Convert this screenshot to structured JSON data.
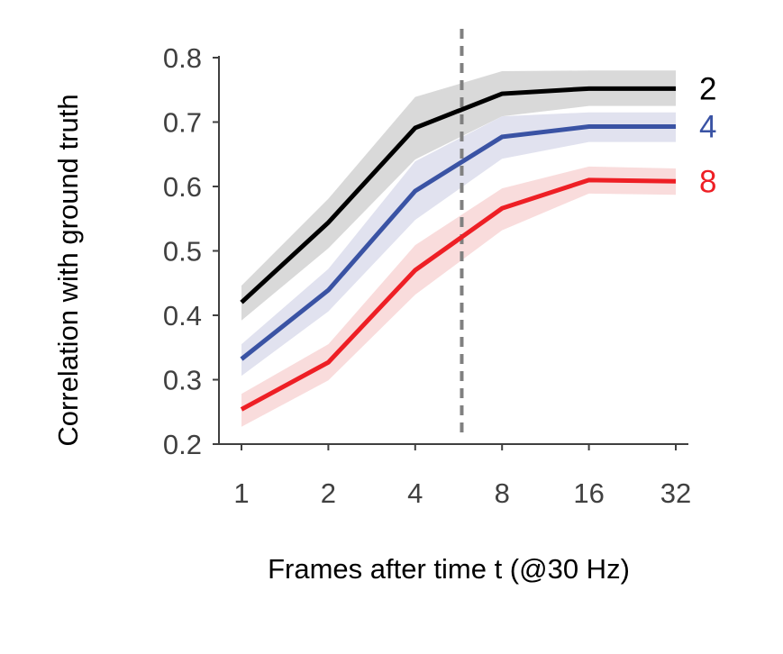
{
  "chart_data": {
    "type": "line",
    "xlabel": "Frames after time t (@30 Hz)",
    "ylabel": "Correlation with ground truth",
    "x": [
      1,
      2,
      4,
      8,
      16,
      32
    ],
    "x_tick_labels": [
      "1",
      "2",
      "4",
      "8",
      "16",
      "32"
    ],
    "x_scale": "log2",
    "ylim": [
      0.2,
      0.8
    ],
    "y_ticks": [
      0.2,
      0.3,
      0.4,
      0.5,
      0.6,
      0.7,
      0.8
    ],
    "y_tick_labels": [
      "0.2",
      "0.3",
      "0.4",
      "0.5",
      "0.6",
      "0.7",
      "0.8"
    ],
    "grid": false,
    "vline_x": 5.8,
    "series": [
      {
        "name": "2",
        "color": "#000000",
        "band_color": "#d9d9d9",
        "values": [
          0.42,
          0.544,
          0.691,
          0.744,
          0.752,
          0.752
        ],
        "upper": [
          0.446,
          0.581,
          0.739,
          0.779,
          0.78,
          0.78
        ],
        "lower": [
          0.392,
          0.504,
          0.642,
          0.709,
          0.725,
          0.725
        ]
      },
      {
        "name": "4",
        "color": "#3a53a4",
        "band_color": "#e1e2ef",
        "values": [
          0.332,
          0.439,
          0.593,
          0.677,
          0.693,
          0.693
        ],
        "upper": [
          0.355,
          0.472,
          0.639,
          0.709,
          0.715,
          0.715
        ],
        "lower": [
          0.306,
          0.406,
          0.548,
          0.643,
          0.669,
          0.669
        ]
      },
      {
        "name": "8",
        "color": "#ee1f25",
        "band_color": "#f9dcdc",
        "values": [
          0.254,
          0.327,
          0.47,
          0.566,
          0.61,
          0.608
        ],
        "upper": [
          0.278,
          0.355,
          0.509,
          0.597,
          0.631,
          0.628
        ],
        "lower": [
          0.227,
          0.299,
          0.432,
          0.532,
          0.589,
          0.587
        ]
      }
    ]
  }
}
